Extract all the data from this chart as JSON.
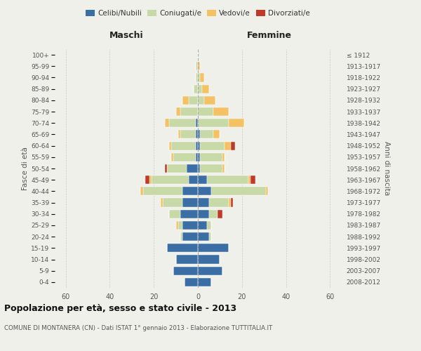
{
  "age_groups": [
    "0-4",
    "5-9",
    "10-14",
    "15-19",
    "20-24",
    "25-29",
    "30-34",
    "35-39",
    "40-44",
    "45-49",
    "50-54",
    "55-59",
    "60-64",
    "65-69",
    "70-74",
    "75-79",
    "80-84",
    "85-89",
    "90-94",
    "95-99",
    "100+"
  ],
  "birth_years": [
    "2008-2012",
    "2003-2007",
    "1998-2002",
    "1993-1997",
    "1988-1992",
    "1983-1987",
    "1978-1982",
    "1973-1977",
    "1968-1972",
    "1963-1967",
    "1958-1962",
    "1953-1957",
    "1948-1952",
    "1943-1947",
    "1938-1942",
    "1933-1937",
    "1928-1932",
    "1923-1927",
    "1918-1922",
    "1913-1917",
    "≤ 1912"
  ],
  "male": {
    "celibi": [
      6,
      11,
      10,
      14,
      7,
      7,
      8,
      7,
      7,
      4,
      5,
      1,
      1,
      1,
      1,
      0,
      0,
      0,
      0,
      0,
      0
    ],
    "coniugati": [
      0,
      0,
      0,
      0,
      1,
      2,
      5,
      9,
      18,
      17,
      9,
      10,
      11,
      7,
      12,
      8,
      4,
      2,
      1,
      1,
      0
    ],
    "vedovi": [
      0,
      0,
      0,
      0,
      0,
      1,
      0,
      1,
      1,
      1,
      0,
      1,
      1,
      1,
      2,
      2,
      3,
      0,
      0,
      0,
      0
    ],
    "divorziati": [
      0,
      0,
      0,
      0,
      0,
      0,
      0,
      0,
      0,
      2,
      1,
      0,
      0,
      0,
      0,
      0,
      0,
      0,
      0,
      0,
      0
    ]
  },
  "female": {
    "nubili": [
      6,
      11,
      10,
      14,
      5,
      4,
      5,
      5,
      6,
      4,
      1,
      1,
      1,
      1,
      0,
      0,
      0,
      0,
      0,
      0,
      0
    ],
    "coniugate": [
      0,
      0,
      0,
      0,
      1,
      2,
      4,
      9,
      25,
      19,
      10,
      10,
      11,
      6,
      14,
      7,
      3,
      2,
      1,
      0,
      0
    ],
    "vedove": [
      0,
      0,
      0,
      0,
      0,
      0,
      0,
      1,
      1,
      1,
      1,
      1,
      3,
      3,
      7,
      7,
      5,
      3,
      2,
      1,
      0
    ],
    "divorziate": [
      0,
      0,
      0,
      0,
      0,
      0,
      2,
      1,
      0,
      2,
      0,
      0,
      2,
      0,
      0,
      0,
      0,
      0,
      0,
      0,
      0
    ]
  },
  "colors": {
    "celibi_nubili": "#3a6ea5",
    "coniugati": "#c8d9a8",
    "vedovi": "#f5c165",
    "divorziati": "#c0392b"
  },
  "xlim": 65,
  "title": "Popolazione per età, sesso e stato civile - 2013",
  "subtitle": "COMUNE DI MONTANERA (CN) - Dati ISTAT 1° gennaio 2013 - Elaborazione TUTTITALIA.IT",
  "ylabel_left": "Fasce di età",
  "ylabel_right": "Anni di nascita",
  "xlabel_left": "Maschi",
  "xlabel_right": "Femmine",
  "background_color": "#f0f0eb"
}
